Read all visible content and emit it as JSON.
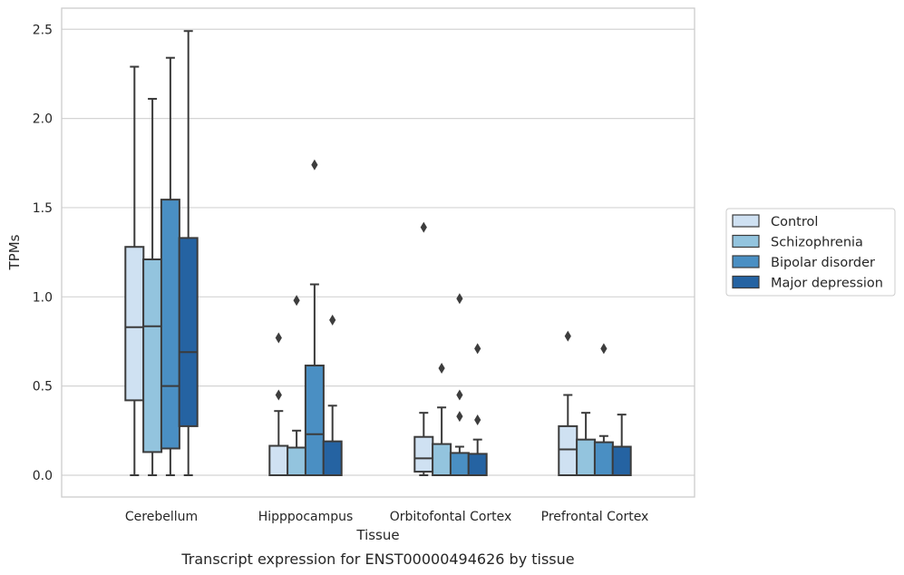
{
  "chart_data": {
    "type": "box",
    "xlabel": "Tissue",
    "ylabel": "TPMs",
    "caption": "Transcript expression for ENST00000494626 by tissue",
    "ylim": [
      -0.12,
      2.62
    ],
    "yticks": [
      0.0,
      0.5,
      1.0,
      1.5,
      2.0,
      2.5
    ],
    "ytick_labels": [
      "0.0",
      "0.5",
      "1.0",
      "1.5",
      "2.0",
      "2.5"
    ],
    "grid": "horizontal",
    "legend_position": "right",
    "categories": [
      "Cerebellum",
      "Hipppocampus",
      "Orbitofontal Cortex",
      "Prefrontal Cortex"
    ],
    "series": [
      {
        "name": "Control",
        "color": "#cfe1f2",
        "boxes": [
          {
            "q1": 0.42,
            "median": 0.83,
            "q3": 1.28,
            "whisker_low": 0.0,
            "whisker_high": 2.29,
            "outliers": []
          },
          {
            "q1": 0.0,
            "median": 0.0,
            "q3": 0.165,
            "whisker_low": 0.0,
            "whisker_high": 0.36,
            "outliers": [
              0.45,
              0.77
            ]
          },
          {
            "q1": 0.02,
            "median": 0.095,
            "q3": 0.215,
            "whisker_low": 0.0,
            "whisker_high": 0.35,
            "outliers": [
              1.39
            ]
          },
          {
            "q1": 0.0,
            "median": 0.145,
            "q3": 0.275,
            "whisker_low": 0.0,
            "whisker_high": 0.45,
            "outliers": [
              0.78
            ]
          }
        ]
      },
      {
        "name": "Schizophrenia",
        "color": "#93c4de",
        "boxes": [
          {
            "q1": 0.13,
            "median": 0.835,
            "q3": 1.21,
            "whisker_low": 0.0,
            "whisker_high": 2.11,
            "outliers": []
          },
          {
            "q1": 0.0,
            "median": 0.0,
            "q3": 0.155,
            "whisker_low": 0.0,
            "whisker_high": 0.25,
            "outliers": [
              0.98
            ]
          },
          {
            "q1": 0.0,
            "median": 0.0,
            "q3": 0.175,
            "whisker_low": 0.0,
            "whisker_high": 0.38,
            "outliers": [
              0.6
            ]
          },
          {
            "q1": 0.0,
            "median": 0.0,
            "q3": 0.2,
            "whisker_low": 0.0,
            "whisker_high": 0.35,
            "outliers": []
          }
        ]
      },
      {
        "name": "Bipolar disorder",
        "color": "#4a8fc3",
        "boxes": [
          {
            "q1": 0.15,
            "median": 0.5,
            "q3": 1.545,
            "whisker_low": 0.0,
            "whisker_high": 2.34,
            "outliers": []
          },
          {
            "q1": 0.0,
            "median": 0.23,
            "q3": 0.615,
            "whisker_low": 0.0,
            "whisker_high": 1.07,
            "outliers": [
              1.74
            ]
          },
          {
            "q1": 0.0,
            "median": 0.0,
            "q3": 0.125,
            "whisker_low": 0.0,
            "whisker_high": 0.16,
            "outliers": [
              0.33,
              0.45,
              0.99
            ]
          },
          {
            "q1": 0.0,
            "median": 0.0,
            "q3": 0.185,
            "whisker_low": 0.0,
            "whisker_high": 0.22,
            "outliers": [
              0.71
            ]
          }
        ]
      },
      {
        "name": "Major depression",
        "color": "#2563a2",
        "boxes": [
          {
            "q1": 0.275,
            "median": 0.69,
            "q3": 1.33,
            "whisker_low": 0.0,
            "whisker_high": 2.49,
            "outliers": []
          },
          {
            "q1": 0.0,
            "median": 0.0,
            "q3": 0.19,
            "whisker_low": 0.0,
            "whisker_high": 0.39,
            "outliers": [
              0.87
            ]
          },
          {
            "q1": 0.0,
            "median": 0.0,
            "q3": 0.12,
            "whisker_low": 0.0,
            "whisker_high": 0.2,
            "outliers": [
              0.31,
              0.71
            ]
          },
          {
            "q1": 0.0,
            "median": 0.0,
            "q3": 0.16,
            "whisker_low": 0.0,
            "whisker_high": 0.34,
            "outliers": []
          }
        ]
      }
    ]
  }
}
